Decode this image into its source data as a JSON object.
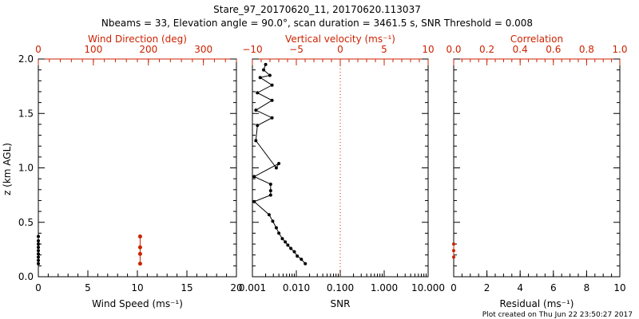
{
  "figure": {
    "title_line1": "Stare_97_20170620_11, 20170620.113037",
    "title_line2": "Nbeams = 33, Elevation angle = 90.0°, scan duration = 3461.5 s, SNR Threshold = 0.008",
    "footer": "Plot created on Thu Jun 22 23:50:27 2017",
    "ylabel": "z (km AGL)",
    "accent_color": "#cc2200"
  },
  "chart_data": [
    {
      "type": "scatter",
      "name": "wind",
      "xlabel": "Wind Speed (ms⁻¹)",
      "xlim": [
        0,
        20
      ],
      "xticks": [
        "0",
        "5",
        "10",
        "15",
        "20"
      ],
      "top_xlabel": "Wind Direction (deg)",
      "top_xlim": [
        0,
        360
      ],
      "top_xticks": [
        "0",
        "100",
        "200",
        "300"
      ],
      "ylim": [
        0,
        2
      ],
      "yticks": [
        "0.0",
        "0.5",
        "1.0",
        "1.5",
        "2.0"
      ],
      "series": [
        {
          "name": "Wind Speed",
          "color": "#000000",
          "x": [
            0,
            0,
            0,
            0,
            0,
            0,
            0,
            0,
            0
          ],
          "y": [
            0.12,
            0.15,
            0.18,
            0.21,
            0.24,
            0.27,
            0.3,
            0.33,
            0.37
          ]
        },
        {
          "name": "Wind Direction",
          "color": "#cc2200",
          "x": [
            185,
            185,
            185,
            185
          ],
          "y": [
            0.12,
            0.21,
            0.27,
            0.37
          ]
        }
      ]
    },
    {
      "type": "line",
      "name": "vertical-velocity",
      "xlabel": "SNR",
      "xscale": "log",
      "xlim": [
        0.001,
        10
      ],
      "xticks": [
        "0.001",
        "0.010",
        "0.100",
        "1.000",
        "10.000"
      ],
      "top_xlabel": "Vertical velocity (ms⁻¹)",
      "top_xlim": [
        -10,
        10
      ],
      "top_xticks": [
        "−10",
        "−5",
        "0",
        "5",
        "10"
      ],
      "ylim": [
        0,
        2
      ],
      "series": [
        {
          "name": "SNR",
          "color": "#000000",
          "x": [
            0.016,
            0.013,
            0.0105,
            0.009,
            0.0075,
            0.0064,
            0.0056,
            0.0048,
            0.004,
            0.0035,
            0.0029,
            0.0024,
            0.0011,
            0.0026,
            0.0026,
            0.0026,
            0.0011,
            0.004,
            0.0035,
            0.0012,
            0.0013,
            0.0028,
            0.0012,
            0.0028,
            0.0013,
            0.0028,
            0.0015,
            0.0025,
            0.0018,
            0.002
          ],
          "y": [
            0.12,
            0.16,
            0.19,
            0.23,
            0.26,
            0.29,
            0.32,
            0.35,
            0.4,
            0.45,
            0.51,
            0.57,
            0.69,
            0.75,
            0.79,
            0.85,
            0.92,
            1.04,
            1.0,
            1.25,
            1.39,
            1.46,
            1.53,
            1.62,
            1.69,
            1.76,
            1.83,
            1.85,
            1.9,
            1.95
          ]
        },
        {
          "name": "Vertical velocity zero line",
          "color": "#cc2200",
          "style": "dotted",
          "top_x": 0
        }
      ]
    },
    {
      "type": "scatter",
      "name": "residual-correlation",
      "xlabel": "Residual (ms⁻¹)",
      "xlim": [
        0,
        10
      ],
      "xticks": [
        "0",
        "2",
        "4",
        "6",
        "8",
        "10"
      ],
      "top_xlabel": "Correlation",
      "top_xlim": [
        0,
        1
      ],
      "top_xticks": [
        "0.0",
        "0.2",
        "0.4",
        "0.6",
        "0.8",
        "1.0"
      ],
      "ylim": [
        0,
        2
      ],
      "series": [
        {
          "name": "Correlation",
          "color": "#cc2200",
          "x": [
            0,
            0,
            0
          ],
          "y": [
            0.18,
            0.24,
            0.3
          ]
        }
      ]
    }
  ]
}
